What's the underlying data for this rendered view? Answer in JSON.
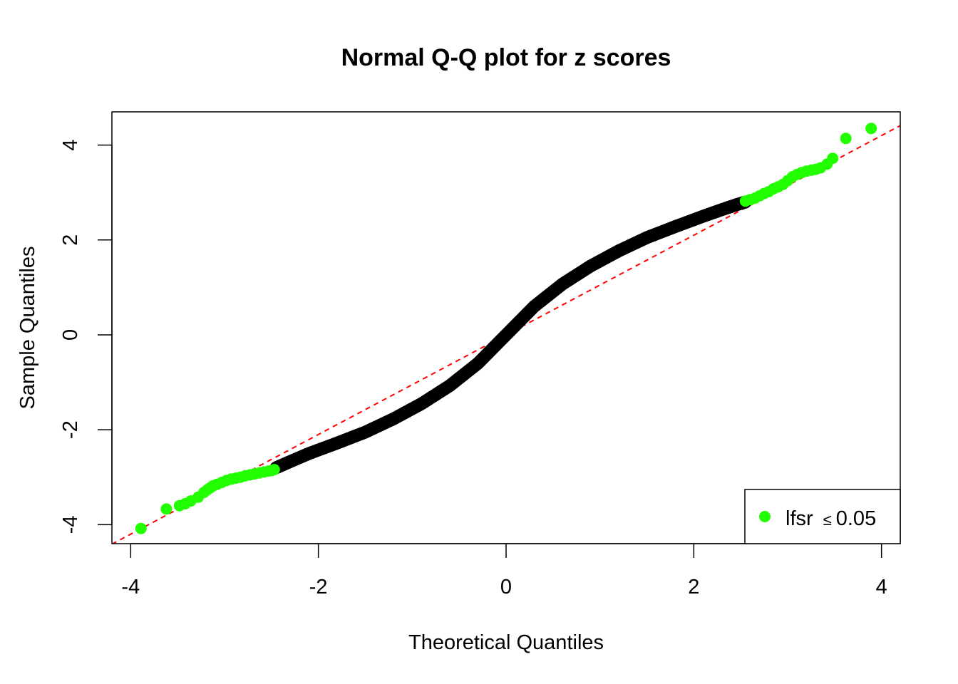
{
  "chart_data": {
    "type": "scatter",
    "title": "Normal Q-Q plot for z scores",
    "xlabel": "Theoretical Quantiles",
    "ylabel": "Sample Quantiles",
    "xlim": [
      -4.2,
      4.2
    ],
    "ylim": [
      -4.4,
      4.7
    ],
    "x_ticks": [
      -4,
      -2,
      0,
      2,
      4
    ],
    "y_ticks": [
      -4,
      -2,
      0,
      2,
      4
    ],
    "x_tick_labels": [
      "-4",
      "-2",
      "0",
      "2",
      "4"
    ],
    "y_tick_labels": [
      "-4",
      "-2",
      "0",
      "2",
      "4"
    ],
    "grid": false,
    "legend": {
      "position": "bottom-right",
      "label_prefix": "lfsr",
      "label_symbol": "≤",
      "label_value": "0.05",
      "marker_color": "#22ff00"
    },
    "colors": {
      "significant": "#22ff00",
      "not_significant": "#000000",
      "reference_line": "#ff0000"
    },
    "reference_line": {
      "slope": 1.05,
      "intercept": 0.0
    },
    "series": [
      {
        "name": "lfsr ≤ 0.05",
        "color": "#22ff00",
        "x": [
          -3.89,
          -3.62,
          -3.48,
          -3.42,
          -3.36,
          -3.28,
          -3.22,
          -3.18,
          -3.15,
          -3.12,
          -3.08,
          -3.03,
          -2.98,
          -2.93,
          -2.88,
          -2.83,
          -2.78,
          -2.73,
          -2.68,
          -2.63,
          -2.58,
          -2.53,
          -2.5,
          -2.47,
          2.55,
          2.6,
          2.65,
          2.7,
          2.75,
          2.8,
          2.85,
          2.9,
          2.95,
          3.0,
          3.05,
          3.1,
          3.15,
          3.2,
          3.25,
          3.3,
          3.35,
          3.42,
          3.48,
          3.62,
          3.89
        ],
        "y": [
          -4.08,
          -3.67,
          -3.6,
          -3.56,
          -3.5,
          -3.42,
          -3.32,
          -3.26,
          -3.22,
          -3.18,
          -3.15,
          -3.11,
          -3.07,
          -3.04,
          -3.02,
          -3.0,
          -2.97,
          -2.95,
          -2.93,
          -2.91,
          -2.89,
          -2.87,
          -2.86,
          -2.84,
          2.82,
          2.85,
          2.88,
          2.93,
          2.98,
          3.02,
          3.08,
          3.12,
          3.17,
          3.25,
          3.33,
          3.38,
          3.42,
          3.45,
          3.47,
          3.49,
          3.52,
          3.6,
          3.72,
          4.14,
          4.35
        ]
      },
      {
        "name": "",
        "color": "#000000",
        "x": [
          -2.45,
          -2.3,
          -2.1,
          -1.8,
          -1.5,
          -1.2,
          -0.9,
          -0.6,
          -0.3,
          0.0,
          0.3,
          0.6,
          0.9,
          1.2,
          1.5,
          1.8,
          2.1,
          2.3,
          2.45,
          2.55
        ],
        "y": [
          -2.8,
          -2.67,
          -2.5,
          -2.28,
          -2.05,
          -1.77,
          -1.45,
          -1.07,
          -0.6,
          0.0,
          0.6,
          1.07,
          1.45,
          1.77,
          2.05,
          2.28,
          2.5,
          2.64,
          2.74,
          2.8
        ]
      }
    ]
  }
}
